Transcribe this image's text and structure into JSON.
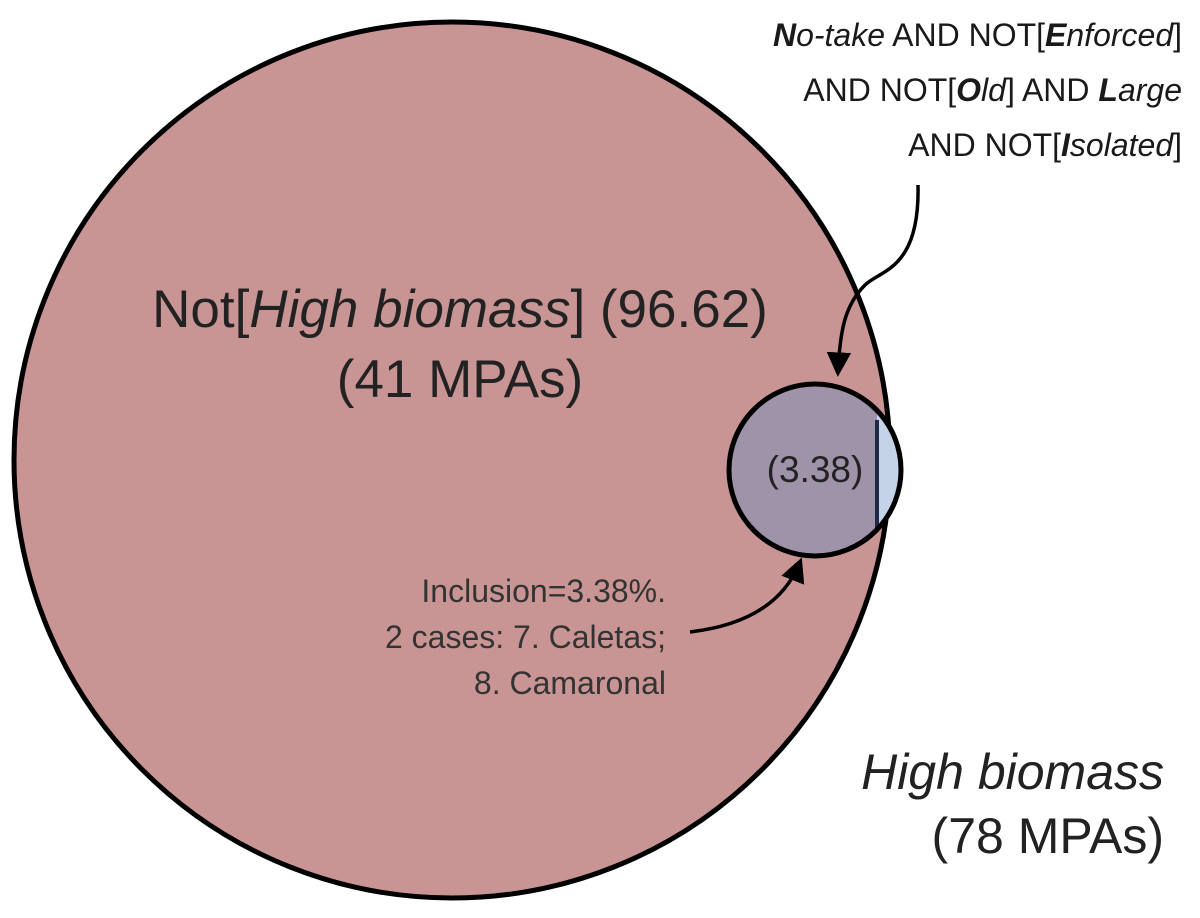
{
  "colors": {
    "large_circle_fill": "#c99594",
    "small_circle_fill": "#9e93a8",
    "sliver_fill": "#c5d3e8",
    "outline": "#000000"
  },
  "condition_label": {
    "line1": [
      {
        "t": "N",
        "s": "bi"
      },
      {
        "t": "o-take",
        "s": "i"
      },
      {
        "t": " AND NOT[",
        "s": ""
      },
      {
        "t": "E",
        "s": "bi"
      },
      {
        "t": "nforced",
        "s": "i"
      },
      {
        "t": "]",
        "s": ""
      }
    ],
    "line2": [
      {
        "t": "AND NOT[",
        "s": ""
      },
      {
        "t": "O",
        "s": "bi"
      },
      {
        "t": "ld",
        "s": "i"
      },
      {
        "t": "] AND ",
        "s": ""
      },
      {
        "t": "L",
        "s": "bi"
      },
      {
        "t": "arge",
        "s": "i"
      }
    ],
    "line3": [
      {
        "t": "AND NOT[",
        "s": ""
      },
      {
        "t": "I",
        "s": "bi"
      },
      {
        "t": "solated",
        "s": "i"
      },
      {
        "t": "]",
        "s": ""
      }
    ]
  },
  "not_high": {
    "prefix": "Not[",
    "name": "High biomass",
    "suffix": "] (96.62)",
    "count": "(41 MPAs)"
  },
  "overlap_value": "(3.38)",
  "inclusion": {
    "line1": "Inclusion=3.38%.",
    "line2": "2 cases: 7. Caletas;",
    "line3": "8. Camaronal"
  },
  "high_biomass": {
    "name": "High biomass",
    "count": "(78 MPAs)"
  }
}
